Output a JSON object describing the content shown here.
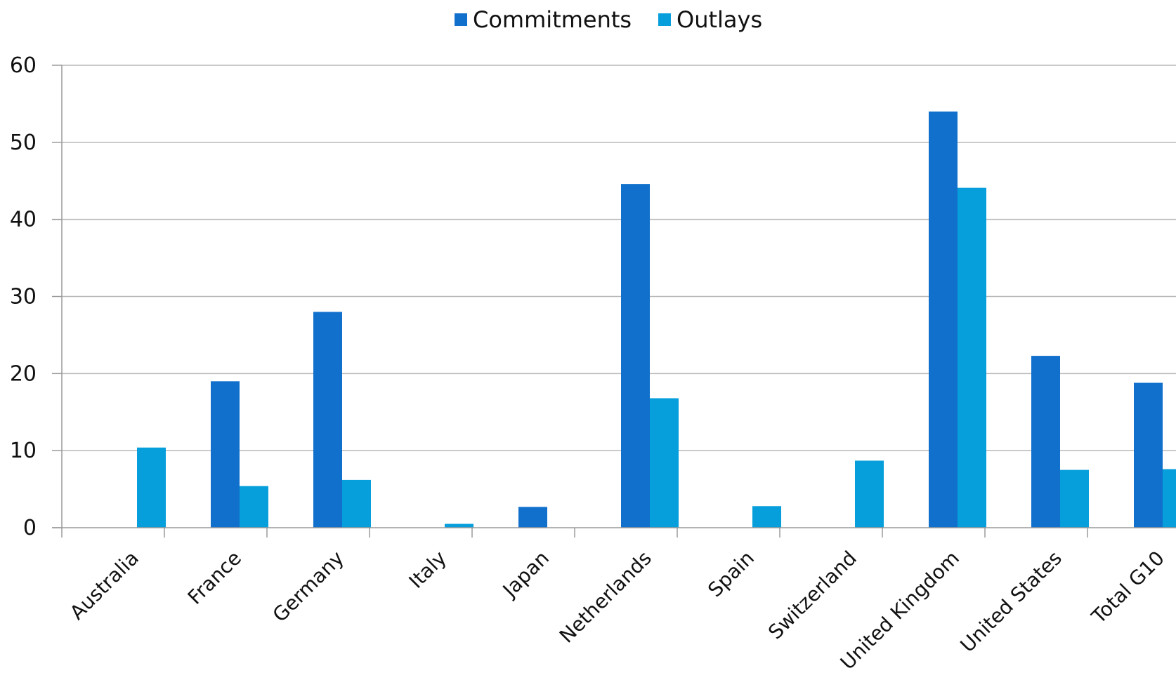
{
  "chart_data": {
    "type": "bar",
    "title": "",
    "xlabel": "",
    "ylabel": "",
    "ylim": [
      0,
      60
    ],
    "yticks": [
      0,
      10,
      20,
      30,
      40,
      50,
      60
    ],
    "grid": true,
    "legend_position": "top-center",
    "categories": [
      "Australia",
      "France",
      "Germany",
      "Italy",
      "Japan",
      "Netherlands",
      "Spain",
      "Switzerland",
      "United Kingdom",
      "United States",
      "Total G10"
    ],
    "series": [
      {
        "name": "Commitments",
        "color": "#1170cc",
        "values": [
          0,
          19,
          28,
          0,
          2.7,
          44.6,
          0,
          0,
          54,
          22.3,
          18.8
        ]
      },
      {
        "name": "Outlays",
        "color": "#079fdb",
        "values": [
          10.4,
          5.4,
          6.2,
          0.5,
          0,
          16.8,
          2.8,
          8.7,
          44.1,
          7.5,
          7.6
        ]
      }
    ]
  }
}
